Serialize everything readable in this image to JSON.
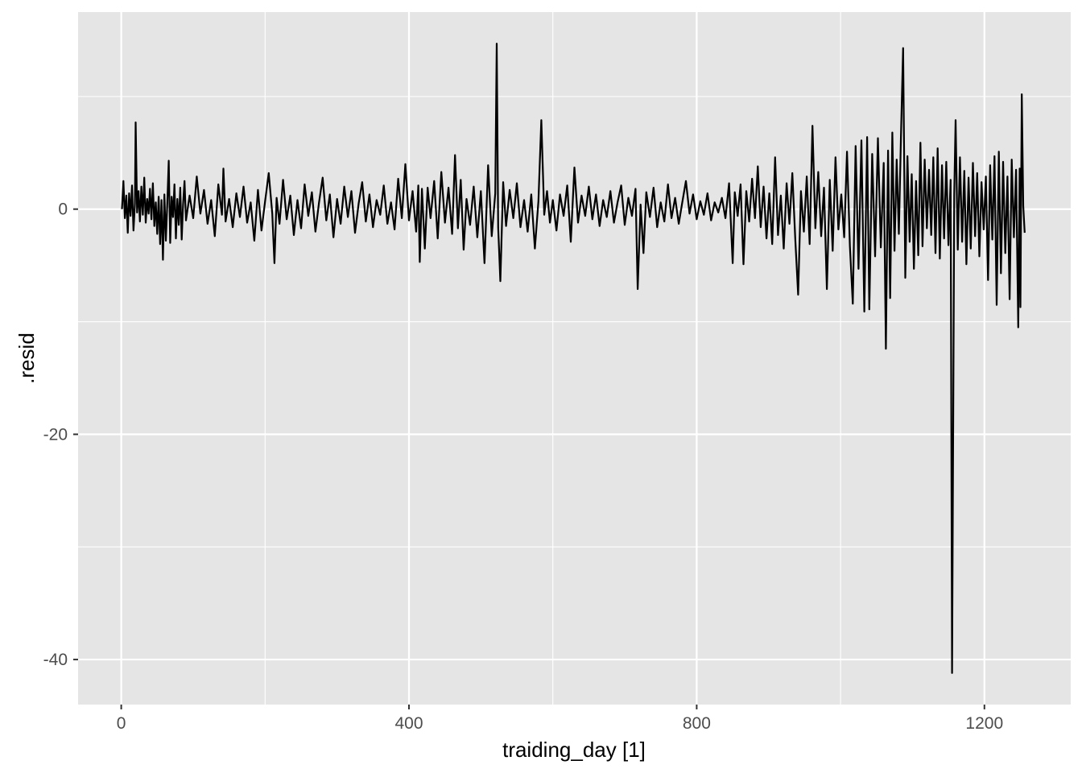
{
  "chart_data": {
    "type": "line",
    "title": "",
    "xlabel": "traiding_day [1]",
    "ylabel": ".resid",
    "xlim": [
      -60,
      1320
    ],
    "ylim": [
      -44,
      17.5
    ],
    "x_ticks": [
      0,
      400,
      800,
      1200
    ],
    "x_minor_ticks": [
      200,
      600,
      1000
    ],
    "y_ticks": [
      -40,
      -20,
      0
    ],
    "y_minor_ticks": [
      -30,
      -10,
      10
    ],
    "x_tick_labels": [
      "0",
      "400",
      "800",
      "1200"
    ],
    "y_tick_labels": [
      "-40",
      "-20",
      "0"
    ],
    "grid": true,
    "panel_background": "#e5e5e5",
    "grid_color": "#ffffff",
    "line_color": "#000000",
    "series": [
      {
        "values": [
          [
            1,
            0.0
          ],
          [
            3,
            2.5
          ],
          [
            5,
            -0.8
          ],
          [
            7,
            1.2
          ],
          [
            9,
            -2.1
          ],
          [
            11,
            1.4
          ],
          [
            13,
            -0.6
          ],
          [
            15,
            2.1
          ],
          [
            17,
            -1.9
          ],
          [
            19,
            0.5
          ],
          [
            20,
            7.7
          ],
          [
            22,
            -0.3
          ],
          [
            24,
            1.6
          ],
          [
            26,
            -1.1
          ],
          [
            28,
            2.0
          ],
          [
            30,
            -0.5
          ],
          [
            32,
            2.8
          ],
          [
            34,
            -1.2
          ],
          [
            36,
            0.9
          ],
          [
            38,
            -0.4
          ],
          [
            40,
            1.8
          ],
          [
            42,
            -0.9
          ],
          [
            44,
            2.3
          ],
          [
            46,
            -1.5
          ],
          [
            48,
            0.6
          ],
          [
            50,
            -2.2
          ],
          [
            52,
            1.1
          ],
          [
            54,
            -3.1
          ],
          [
            56,
            0.8
          ],
          [
            58,
            -4.5
          ],
          [
            60,
            1.3
          ],
          [
            62,
            -2.8
          ],
          [
            64,
            0.5
          ],
          [
            66,
            4.3
          ],
          [
            68,
            -3.0
          ],
          [
            70,
            1.1
          ],
          [
            72,
            -0.7
          ],
          [
            74,
            2.2
          ],
          [
            76,
            -2.6
          ],
          [
            78,
            0.9
          ],
          [
            80,
            -1.4
          ],
          [
            82,
            1.9
          ],
          [
            84,
            -2.7
          ],
          [
            86,
            0.4
          ],
          [
            88,
            2.5
          ],
          [
            90,
            -1.0
          ],
          [
            95,
            1.2
          ],
          [
            100,
            -0.8
          ],
          [
            105,
            2.9
          ],
          [
            110,
            -0.4
          ],
          [
            115,
            1.7
          ],
          [
            120,
            -1.3
          ],
          [
            125,
            0.8
          ],
          [
            130,
            -2.4
          ],
          [
            135,
            2.2
          ],
          [
            140,
            -0.5
          ],
          [
            142,
            3.6
          ],
          [
            145,
            -1.1
          ],
          [
            150,
            0.9
          ],
          [
            155,
            -1.6
          ],
          [
            160,
            1.4
          ],
          [
            165,
            -0.7
          ],
          [
            170,
            2.0
          ],
          [
            175,
            -1.2
          ],
          [
            180,
            0.6
          ],
          [
            185,
            -2.8
          ],
          [
            190,
            1.7
          ],
          [
            195,
            -1.9
          ],
          [
            200,
            0.7
          ],
          [
            205,
            3.2
          ],
          [
            210,
            -0.4
          ],
          [
            213,
            -4.8
          ],
          [
            216,
            1.0
          ],
          [
            220,
            -1.3
          ],
          [
            225,
            2.6
          ],
          [
            230,
            -0.9
          ],
          [
            235,
            1.2
          ],
          [
            240,
            -2.3
          ],
          [
            245,
            0.8
          ],
          [
            250,
            -1.7
          ],
          [
            255,
            2.2
          ],
          [
            260,
            -0.6
          ],
          [
            265,
            1.5
          ],
          [
            270,
            -2.0
          ],
          [
            275,
            0.6
          ],
          [
            280,
            2.8
          ],
          [
            285,
            -1.0
          ],
          [
            290,
            1.3
          ],
          [
            295,
            -2.5
          ],
          [
            300,
            0.9
          ],
          [
            305,
            -1.3
          ],
          [
            310,
            2.0
          ],
          [
            315,
            -0.7
          ],
          [
            320,
            1.6
          ],
          [
            325,
            -2.1
          ],
          [
            330,
            0.5
          ],
          [
            335,
            2.4
          ],
          [
            340,
            -1.1
          ],
          [
            345,
            1.3
          ],
          [
            350,
            -1.6
          ],
          [
            355,
            0.8
          ],
          [
            360,
            -0.5
          ],
          [
            365,
            2.1
          ],
          [
            370,
            -1.3
          ],
          [
            375,
            0.6
          ],
          [
            380,
            -1.8
          ],
          [
            385,
            2.7
          ],
          [
            390,
            -0.8
          ],
          [
            395,
            4.0
          ],
          [
            400,
            -1.0
          ],
          [
            405,
            1.6
          ],
          [
            410,
            -2.0
          ],
          [
            413,
            2.1
          ],
          [
            415,
            -4.7
          ],
          [
            418,
            1.8
          ],
          [
            422,
            -3.5
          ],
          [
            426,
            1.9
          ],
          [
            430,
            -0.8
          ],
          [
            435,
            2.5
          ],
          [
            440,
            -2.6
          ],
          [
            445,
            3.3
          ],
          [
            450,
            -1.2
          ],
          [
            455,
            1.9
          ],
          [
            460,
            -2.2
          ],
          [
            464,
            4.8
          ],
          [
            468,
            -1.7
          ],
          [
            472,
            2.6
          ],
          [
            476,
            -3.6
          ],
          [
            480,
            0.9
          ],
          [
            485,
            -1.4
          ],
          [
            490,
            2.0
          ],
          [
            495,
            -2.5
          ],
          [
            500,
            1.6
          ],
          [
            505,
            -4.8
          ],
          [
            510,
            3.9
          ],
          [
            515,
            -2.4
          ],
          [
            520,
            1.4
          ],
          [
            522,
            14.7
          ],
          [
            524,
            -1.6
          ],
          [
            527,
            -6.4
          ],
          [
            531,
            2.4
          ],
          [
            535,
            -1.5
          ],
          [
            540,
            1.7
          ],
          [
            545,
            -0.8
          ],
          [
            550,
            2.3
          ],
          [
            555,
            -1.6
          ],
          [
            560,
            0.8
          ],
          [
            565,
            -2.0
          ],
          [
            570,
            1.3
          ],
          [
            575,
            -3.5
          ],
          [
            580,
            0.7
          ],
          [
            584,
            7.9
          ],
          [
            588,
            -0.5
          ],
          [
            592,
            1.6
          ],
          [
            596,
            -1.2
          ],
          [
            600,
            0.8
          ],
          [
            605,
            -1.9
          ],
          [
            610,
            1.3
          ],
          [
            615,
            -0.6
          ],
          [
            620,
            2.1
          ],
          [
            625,
            -2.9
          ],
          [
            630,
            3.7
          ],
          [
            635,
            -1.2
          ],
          [
            640,
            1.2
          ],
          [
            645,
            -0.6
          ],
          [
            650,
            2.0
          ],
          [
            655,
            -0.9
          ],
          [
            660,
            1.3
          ],
          [
            665,
            -1.5
          ],
          [
            670,
            0.8
          ],
          [
            675,
            -0.7
          ],
          [
            680,
            1.6
          ],
          [
            685,
            -1.2
          ],
          [
            690,
            0.6
          ],
          [
            695,
            2.1
          ],
          [
            700,
            -1.4
          ],
          [
            705,
            1.0
          ],
          [
            710,
            -0.6
          ],
          [
            715,
            1.8
          ],
          [
            718,
            -7.1
          ],
          [
            722,
            0.4
          ],
          [
            726,
            -3.9
          ],
          [
            730,
            1.5
          ],
          [
            735,
            -0.7
          ],
          [
            740,
            1.9
          ],
          [
            745,
            -1.6
          ],
          [
            750,
            0.6
          ],
          [
            755,
            -1.1
          ],
          [
            760,
            2.2
          ],
          [
            765,
            -0.8
          ],
          [
            770,
            1.0
          ],
          [
            775,
            -1.3
          ],
          [
            780,
            0.6
          ],
          [
            785,
            2.5
          ],
          [
            790,
            -0.4
          ],
          [
            795,
            1.3
          ],
          [
            800,
            -0.9
          ],
          [
            805,
            0.7
          ],
          [
            810,
            -0.5
          ],
          [
            815,
            1.4
          ],
          [
            820,
            -1.0
          ],
          [
            825,
            0.6
          ],
          [
            830,
            -0.3
          ],
          [
            835,
            1.0
          ],
          [
            840,
            -0.8
          ],
          [
            845,
            2.3
          ],
          [
            850,
            -4.8
          ],
          [
            853,
            1.5
          ],
          [
            857,
            -0.6
          ],
          [
            861,
            2.2
          ],
          [
            865,
            -4.9
          ],
          [
            869,
            1.6
          ],
          [
            873,
            -1.1
          ],
          [
            877,
            2.7
          ],
          [
            881,
            -0.8
          ],
          [
            885,
            3.8
          ],
          [
            889,
            -1.6
          ],
          [
            893,
            2.0
          ],
          [
            897,
            -2.6
          ],
          [
            901,
            1.4
          ],
          [
            905,
            -3.1
          ],
          [
            909,
            4.6
          ],
          [
            913,
            -2.3
          ],
          [
            917,
            1.2
          ],
          [
            921,
            -3.5
          ],
          [
            925,
            2.3
          ],
          [
            929,
            -1.3
          ],
          [
            933,
            3.2
          ],
          [
            937,
            -2.6
          ],
          [
            941,
            -7.6
          ],
          [
            945,
            1.6
          ],
          [
            949,
            -2.0
          ],
          [
            953,
            2.9
          ],
          [
            957,
            -3.1
          ],
          [
            961,
            7.4
          ],
          [
            965,
            -1.7
          ],
          [
            969,
            3.3
          ],
          [
            973,
            -2.4
          ],
          [
            977,
            1.9
          ],
          [
            981,
            -7.1
          ],
          [
            985,
            2.6
          ],
          [
            989,
            -3.7
          ],
          [
            993,
            4.6
          ],
          [
            997,
            -1.8
          ],
          [
            1001,
            1.3
          ],
          [
            1005,
            -2.5
          ],
          [
            1009,
            5.1
          ],
          [
            1013,
            -3.3
          ],
          [
            1017,
            -8.4
          ],
          [
            1021,
            5.6
          ],
          [
            1025,
            -5.3
          ],
          [
            1029,
            6.1
          ],
          [
            1033,
            -9.1
          ],
          [
            1037,
            6.4
          ],
          [
            1040,
            -8.9
          ],
          [
            1044,
            4.9
          ],
          [
            1048,
            -4.2
          ],
          [
            1052,
            6.3
          ],
          [
            1056,
            -3.4
          ],
          [
            1060,
            4.1
          ],
          [
            1063,
            -12.4
          ],
          [
            1066,
            5.2
          ],
          [
            1069,
            -7.9
          ],
          [
            1072,
            6.8
          ],
          [
            1075,
            -3.7
          ],
          [
            1078,
            4.4
          ],
          [
            1081,
            -2.2
          ],
          [
            1084,
            6.4
          ],
          [
            1087,
            14.3
          ],
          [
            1090,
            -6.1
          ],
          [
            1093,
            4.7
          ],
          [
            1096,
            -2.9
          ],
          [
            1099,
            3.1
          ],
          [
            1102,
            -5.3
          ],
          [
            1105,
            2.5
          ],
          [
            1108,
            -4.1
          ],
          [
            1111,
            5.9
          ],
          [
            1114,
            -3.3
          ],
          [
            1117,
            4.4
          ],
          [
            1120,
            -1.7
          ],
          [
            1123,
            3.5
          ],
          [
            1126,
            -2.3
          ],
          [
            1129,
            4.6
          ],
          [
            1132,
            -3.9
          ],
          [
            1135,
            5.4
          ],
          [
            1138,
            -4.4
          ],
          [
            1141,
            3.9
          ],
          [
            1144,
            -2.6
          ],
          [
            1147,
            4.2
          ],
          [
            1150,
            -3.2
          ],
          [
            1153,
            2.6
          ],
          [
            1155,
            -41.2
          ],
          [
            1158,
            1.3
          ],
          [
            1160,
            7.9
          ],
          [
            1163,
            -3.6
          ],
          [
            1166,
            4.6
          ],
          [
            1169,
            -2.9
          ],
          [
            1172,
            3.4
          ],
          [
            1175,
            -4.9
          ],
          [
            1178,
            2.8
          ],
          [
            1181,
            -3.5
          ],
          [
            1184,
            4.1
          ],
          [
            1187,
            -2.4
          ],
          [
            1190,
            3.2
          ],
          [
            1193,
            -4.2
          ],
          [
            1196,
            2.4
          ],
          [
            1199,
            -1.8
          ],
          [
            1202,
            2.9
          ],
          [
            1205,
            -6.3
          ],
          [
            1208,
            3.9
          ],
          [
            1211,
            -2.7
          ],
          [
            1214,
            4.7
          ],
          [
            1217,
            -8.5
          ],
          [
            1220,
            5.1
          ],
          [
            1223,
            -5.7
          ],
          [
            1226,
            4.2
          ],
          [
            1229,
            -3.9
          ],
          [
            1232,
            2.9
          ],
          [
            1235,
            -8.0
          ],
          [
            1238,
            4.4
          ],
          [
            1241,
            -2.5
          ],
          [
            1244,
            3.5
          ],
          [
            1247,
            -10.5
          ],
          [
            1249,
            3.6
          ],
          [
            1250,
            -8.7
          ],
          [
            1252,
            10.2
          ],
          [
            1254,
            0.3
          ],
          [
            1256,
            -2.1
          ]
        ]
      }
    ]
  }
}
